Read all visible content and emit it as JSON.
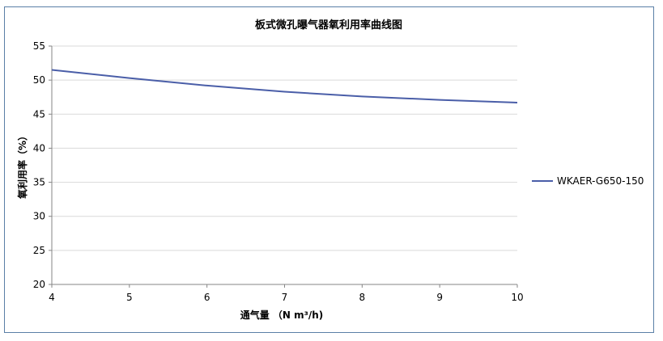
{
  "chart_data": {
    "type": "line",
    "title": "板式微孔曝气器氧利用率曲线图",
    "xlabel": "通气量 （N m³/h)",
    "ylabel": "氧利用率（%）",
    "xlim": [
      4,
      10
    ],
    "ylim": [
      20,
      55
    ],
    "xticks": [
      4,
      5,
      6,
      7,
      8,
      9,
      10
    ],
    "yticks": [
      20,
      25,
      30,
      35,
      40,
      45,
      50,
      55
    ],
    "grid": "horizontal",
    "legend_position": "right",
    "series": [
      {
        "name": "WKAER-G650-150",
        "color": "#4a5ea8",
        "x": [
          4,
          5,
          6,
          7,
          8,
          9,
          10
        ],
        "y": [
          51.5,
          50.3,
          49.2,
          48.3,
          47.6,
          47.1,
          46.7
        ]
      }
    ]
  }
}
